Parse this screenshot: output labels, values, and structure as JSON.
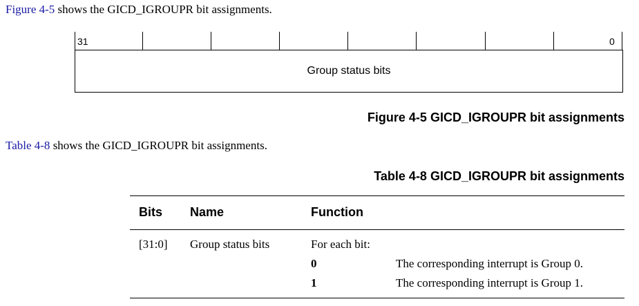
{
  "intro": {
    "figure_ref": "Figure 4-5",
    "figure_text": " shows the GICD_IGROUPR bit assignments.",
    "table_ref": "Table 4-8",
    "table_text": " shows the GICD_IGROUPR bit assignments."
  },
  "register": {
    "high_bit": "31",
    "low_bit": "0",
    "field_label": "Group status bits"
  },
  "figure_caption": "Figure 4-5 GICD_IGROUPR bit assignments",
  "table_caption": "Table 4-8 GICD_IGROUPR bit assignments",
  "table": {
    "headers": [
      "Bits",
      "Name",
      "Function"
    ],
    "row": {
      "bits": "[31:0]",
      "name": "Group status bits",
      "function_intro": "For each bit:",
      "values": [
        {
          "value": "0",
          "meaning": "The corresponding interrupt is Group 0."
        },
        {
          "value": "1",
          "meaning": "The corresponding interrupt is Group 1."
        }
      ]
    }
  }
}
